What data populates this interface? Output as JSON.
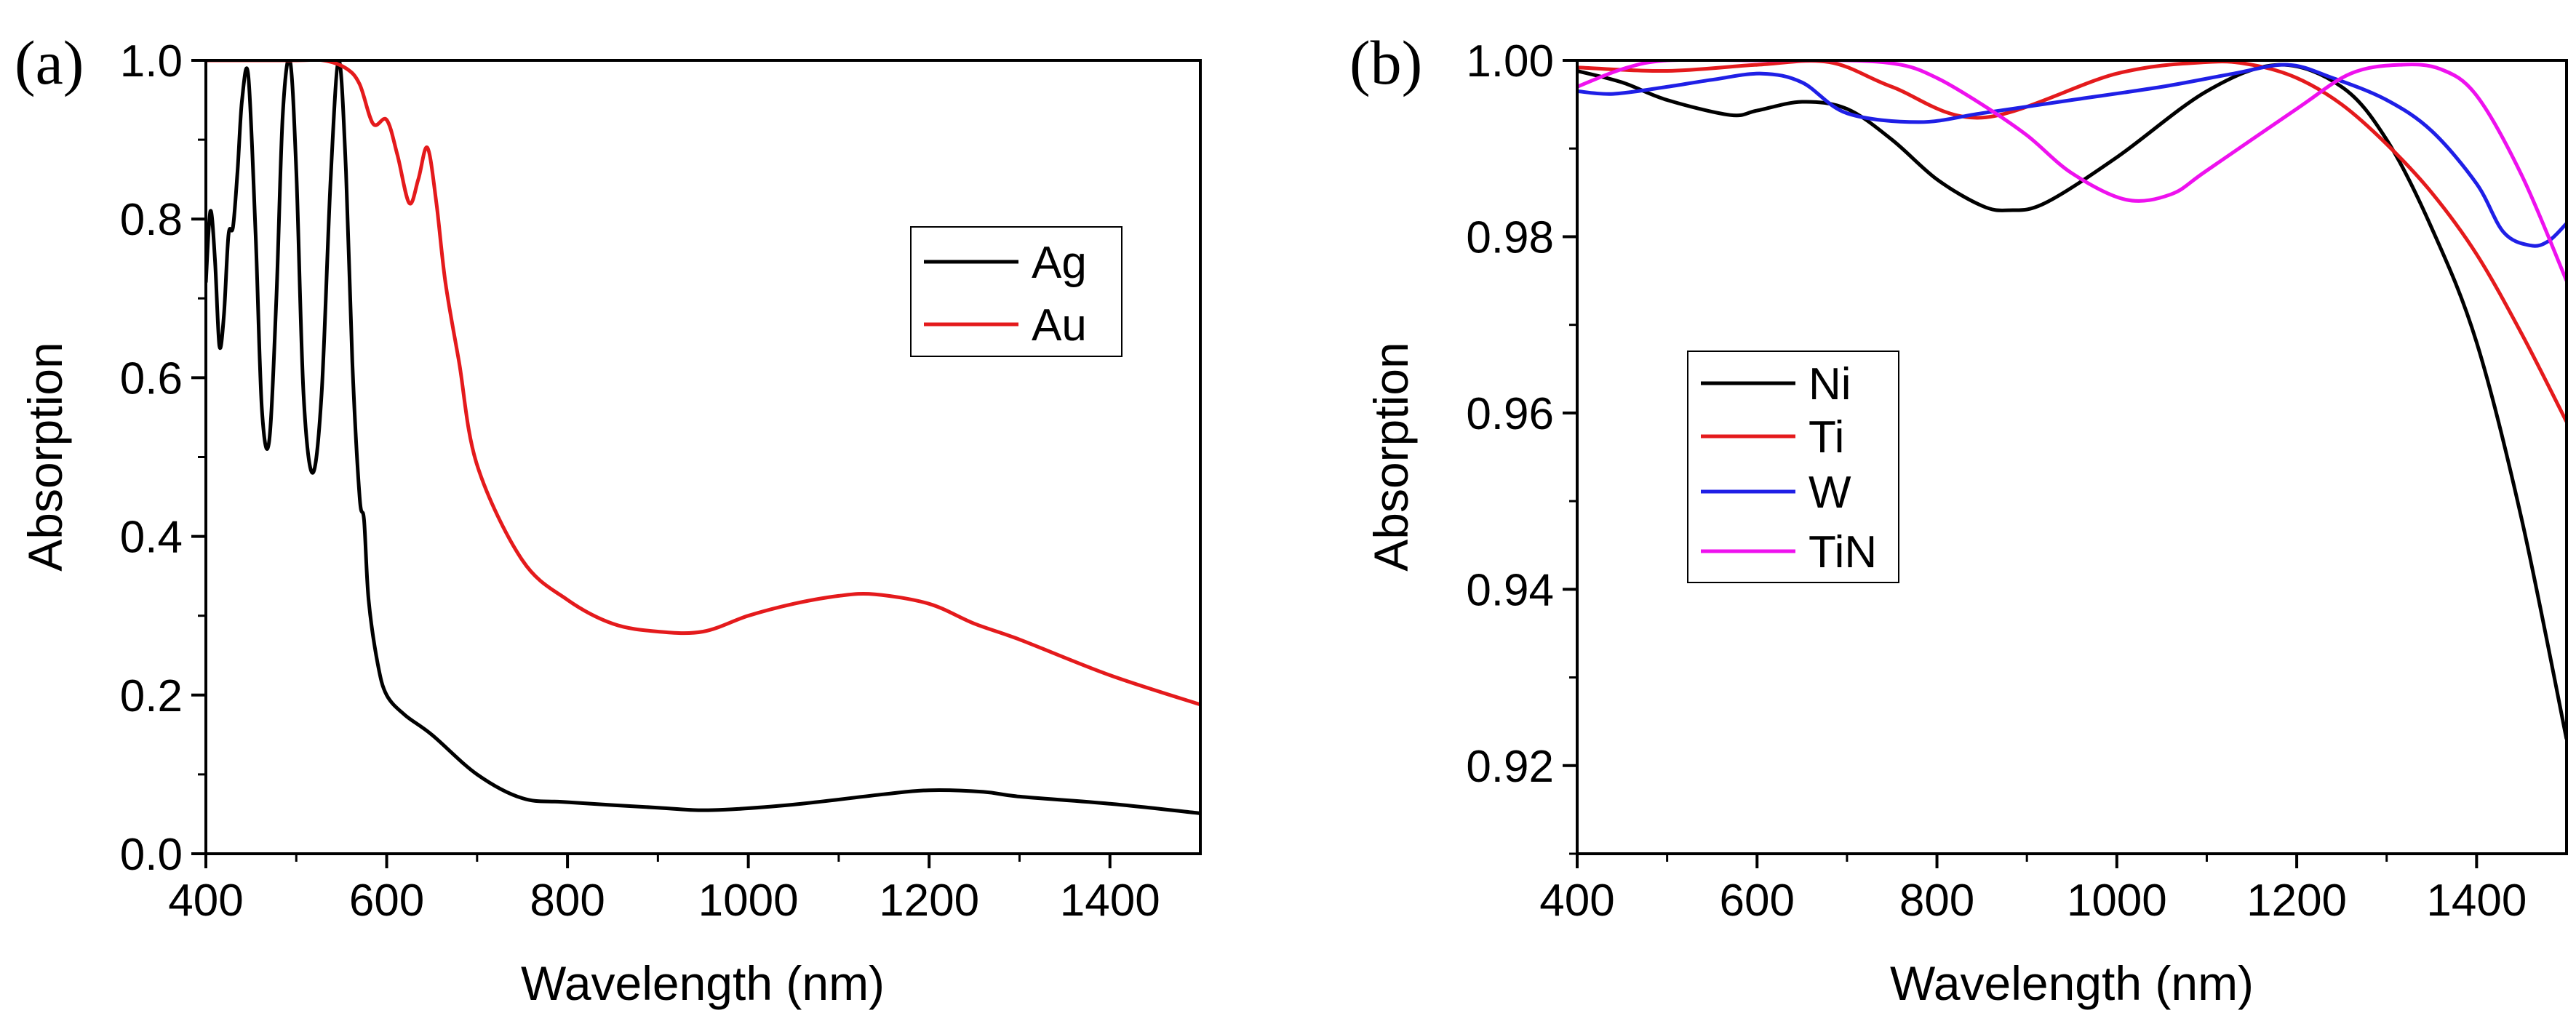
{
  "figure_labels": [
    "(a)",
    "(b)"
  ],
  "chart_data": [
    {
      "type": "line",
      "panel_label": "(a)",
      "title": "",
      "xlabel": "Wavelength (nm)",
      "ylabel": "Absorption",
      "xlim": [
        400,
        1500
      ],
      "ylim": [
        0.0,
        1.0
      ],
      "xticks": [
        400,
        600,
        800,
        1000,
        1200,
        1400
      ],
      "yticks": [
        0.0,
        0.2,
        0.4,
        0.6,
        0.8,
        1.0
      ],
      "xtick_labels": [
        "400",
        "600",
        "800",
        "1000",
        "1200",
        "1400"
      ],
      "ytick_labels": [
        "0.0",
        "0.2",
        "0.4",
        "0.6",
        "0.8",
        "1.0"
      ],
      "legend_position": "upper-right",
      "series": [
        {
          "name": "Ag",
          "color": "#000000",
          "x": [
            400,
            405,
            410,
            415,
            420,
            425,
            430,
            435,
            440,
            447,
            455,
            462,
            470,
            478,
            485,
            493,
            500,
            508,
            518,
            528,
            538,
            547,
            555,
            562,
            570,
            575,
            580,
            590,
            600,
            620,
            650,
            700,
            750,
            800,
            900,
            960,
            1050,
            1150,
            1200,
            1260,
            1300,
            1400,
            1500
          ],
          "y": [
            0.72,
            0.81,
            0.75,
            0.64,
            0.68,
            0.78,
            0.79,
            0.86,
            0.95,
            0.98,
            0.78,
            0.56,
            0.52,
            0.7,
            0.93,
            1.0,
            0.86,
            0.58,
            0.48,
            0.58,
            0.85,
            1.0,
            0.86,
            0.62,
            0.45,
            0.42,
            0.32,
            0.24,
            0.2,
            0.175,
            0.15,
            0.1,
            0.07,
            0.065,
            0.058,
            0.055,
            0.062,
            0.075,
            0.08,
            0.078,
            0.072,
            0.063,
            0.051
          ]
        },
        {
          "name": "Au",
          "color": "#e41a1c",
          "x": [
            400,
            500,
            530,
            555,
            570,
            585,
            600,
            612,
            625,
            635,
            645,
            655,
            665,
            680,
            700,
            750,
            800,
            850,
            900,
            950,
            1000,
            1050,
            1100,
            1140,
            1200,
            1250,
            1300,
            1400,
            1500
          ],
          "y": [
            1.0,
            1.0,
            1.0,
            0.99,
            0.97,
            0.92,
            0.925,
            0.88,
            0.82,
            0.85,
            0.89,
            0.82,
            0.72,
            0.62,
            0.49,
            0.37,
            0.32,
            0.29,
            0.28,
            0.28,
            0.3,
            0.315,
            0.325,
            0.327,
            0.315,
            0.29,
            0.27,
            0.225,
            0.188
          ]
        }
      ]
    },
    {
      "type": "line",
      "panel_label": "(b)",
      "title": "",
      "xlabel": "Wavelength (nm)",
      "ylabel": "Absorption",
      "xlim": [
        400,
        1500
      ],
      "ylim": [
        0.91,
        1.0
      ],
      "xticks": [
        400,
        600,
        800,
        1000,
        1200,
        1400
      ],
      "yticks": [
        0.92,
        0.94,
        0.96,
        0.98,
        1.0
      ],
      "xtick_labels": [
        "400",
        "600",
        "800",
        "1000",
        "1200",
        "1400"
      ],
      "ytick_labels": [
        "0.92",
        "0.94",
        "0.96",
        "0.98",
        "1.00"
      ],
      "legend_position": "lower-left",
      "series": [
        {
          "name": "Ni",
          "color": "#000000",
          "x": [
            400,
            450,
            500,
            570,
            600,
            650,
            700,
            750,
            800,
            850,
            880,
            920,
            1000,
            1100,
            1180,
            1250,
            1300,
            1350,
            1400,
            1450,
            1500
          ],
          "y": [
            0.9988,
            0.9975,
            0.9955,
            0.9938,
            0.9943,
            0.9953,
            0.9945,
            0.991,
            0.9865,
            0.9835,
            0.983,
            0.9838,
            0.989,
            0.9965,
            0.9995,
            0.997,
            0.991,
            0.981,
            0.968,
            0.948,
            0.923
          ]
        },
        {
          "name": "Ti",
          "color": "#e41a1c",
          "x": [
            400,
            500,
            600,
            680,
            750,
            850,
            1000,
            1100,
            1150,
            1200,
            1250,
            1300,
            1350,
            1400,
            1450,
            1500
          ],
          "y": [
            0.9992,
            0.9988,
            0.9995,
            0.9998,
            0.997,
            0.9935,
            0.9985,
            0.9998,
            0.9995,
            0.998,
            0.995,
            0.9905,
            0.985,
            0.978,
            0.969,
            0.959
          ]
        },
        {
          "name": "W",
          "color": "#1f1fe6",
          "x": [
            400,
            440,
            500,
            550,
            605,
            650,
            700,
            780,
            850,
            950,
            1050,
            1130,
            1190,
            1240,
            1300,
            1350,
            1400,
            1430,
            1460,
            1480,
            1500
          ],
          "y": [
            0.9965,
            0.9962,
            0.997,
            0.9978,
            0.9985,
            0.9975,
            0.994,
            0.993,
            0.994,
            0.9955,
            0.997,
            0.9985,
            0.9995,
            0.998,
            0.9955,
            0.992,
            0.986,
            0.9805,
            0.979,
            0.9795,
            0.9815
          ]
        },
        {
          "name": "TiN",
          "color": "#ee11ee",
          "x": [
            400,
            450,
            500,
            600,
            700,
            760,
            800,
            850,
            900,
            950,
            1010,
            1060,
            1100,
            1200,
            1260,
            1315,
            1360,
            1400,
            1450,
            1500
          ],
          "y": [
            0.997,
            0.999,
            1.0,
            1.0,
            1.0,
            0.9995,
            0.998,
            0.995,
            0.9915,
            0.9872,
            0.9842,
            0.9848,
            0.9875,
            0.9945,
            0.9985,
            0.9995,
            0.999,
            0.996,
            0.987,
            0.975
          ]
        }
      ]
    }
  ]
}
